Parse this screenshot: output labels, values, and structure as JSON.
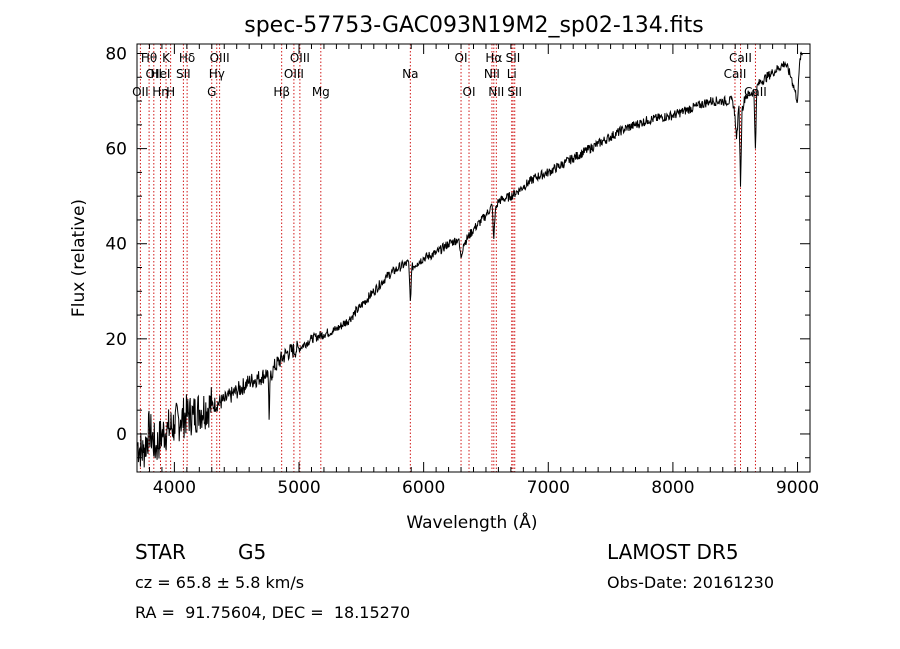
{
  "chart_data": {
    "type": "line",
    "title": "spec-57753-GAC093N19M2_sp02-134.fits",
    "xlabel": "Wavelength (Å)",
    "ylabel": "Flux (relative)",
    "xlim": [
      3700,
      9100
    ],
    "ylim": [
      -8,
      82
    ],
    "x_ticks": [
      4000,
      5000,
      6000,
      7000,
      8000,
      9000
    ],
    "y_ticks": [
      0,
      20,
      40,
      60,
      80
    ],
    "grid": false,
    "line_color": "#000000",
    "marker_color": "#cc0000",
    "series": [
      {
        "x": [
          3700,
          3750,
          3800,
          3850,
          3900,
          3950,
          4000,
          4050,
          4100,
          4150,
          4200,
          4300,
          4400,
          4500,
          4600,
          4700,
          4750,
          4760,
          4770,
          4800,
          4900,
          5000,
          5100,
          5200,
          5300,
          5400,
          5500,
          5600,
          5700,
          5800,
          5880,
          5893,
          5906,
          5950,
          6000,
          6100,
          6200,
          6280,
          6300,
          6320,
          6400,
          6500,
          6550,
          6563,
          6576,
          6600,
          6700,
          6800,
          6900,
          7000,
          7200,
          7400,
          7600,
          7800,
          8000,
          8200,
          8300,
          8400,
          8480,
          8498,
          8510,
          8530,
          8542,
          8554,
          8580,
          8650,
          8662,
          8674,
          8700,
          8800,
          8900,
          8950,
          9000,
          9020,
          9040
        ],
        "values": [
          -2,
          -4,
          1,
          -3,
          0,
          1,
          2,
          3,
          4,
          4,
          5,
          6,
          7,
          9,
          11,
          12,
          13,
          3,
          12,
          14,
          17,
          18,
          20,
          21,
          22,
          24,
          27,
          30,
          33,
          35,
          36,
          28,
          35,
          36,
          37,
          38,
          40,
          41,
          37,
          40,
          43,
          46,
          48,
          41,
          47,
          49,
          50,
          52,
          54,
          55,
          58,
          61,
          64,
          66,
          67,
          69,
          70,
          70,
          70,
          67,
          62,
          69,
          52,
          68,
          71,
          72,
          60,
          73,
          74,
          76,
          78,
          75,
          70,
          79,
          80
        ]
      }
    ],
    "lines": [
      {
        "x": 3797,
        "label": "Hθ",
        "row": 1
      },
      {
        "x": 3835,
        "label": "OII",
        "row": 2
      },
      {
        "x": 3727,
        "label": "OII",
        "row": 3
      },
      {
        "x": 3889,
        "label": "Hη",
        "row": 3
      },
      {
        "x": 3933,
        "label": "K",
        "row": 1
      },
      {
        "x": 3970,
        "label": "H",
        "row": 3
      },
      {
        "x": 3888,
        "label": "HeI",
        "row": 2
      },
      {
        "x": 4072,
        "label": "SII",
        "row": 2
      },
      {
        "x": 4102,
        "label": "Hδ",
        "row": 1
      },
      {
        "x": 4300,
        "label": "G",
        "row": 3
      },
      {
        "x": 4340,
        "label": "Hγ",
        "row": 2
      },
      {
        "x": 4363,
        "label": "OIII",
        "row": 1
      },
      {
        "x": 4861,
        "label": "Hβ",
        "row": 3
      },
      {
        "x": 4959,
        "label": "OIII",
        "row": 2
      },
      {
        "x": 5007,
        "label": "OIII",
        "row": 1
      },
      {
        "x": 5175,
        "label": "Mg",
        "row": 3
      },
      {
        "x": 5893,
        "label": "Na",
        "row": 2
      },
      {
        "x": 6300,
        "label": "OI",
        "row": 1
      },
      {
        "x": 6364,
        "label": "OI",
        "row": 3
      },
      {
        "x": 6548,
        "label": "NII",
        "row": 2
      },
      {
        "x": 6563,
        "label": "Hα",
        "row": 1
      },
      {
        "x": 6583,
        "label": "NII",
        "row": 3
      },
      {
        "x": 6707,
        "label": "Li",
        "row": 2
      },
      {
        "x": 6717,
        "label": "SII",
        "row": 1
      },
      {
        "x": 6731,
        "label": "SII",
        "row": 3
      },
      {
        "x": 8498,
        "label": "CaII",
        "row": 2
      },
      {
        "x": 8542,
        "label": "CaII",
        "row": 1
      },
      {
        "x": 8662,
        "label": "CaII",
        "row": 3
      }
    ]
  },
  "info": {
    "class_label": "STAR",
    "subclass_label": "G5",
    "survey": "LAMOST DR5",
    "cz": "cz = 65.8 ± 5.8 km/s",
    "obs_date": "Obs-Date: 20161230",
    "coords": "RA =  91.75604, DEC =  18.15270"
  }
}
